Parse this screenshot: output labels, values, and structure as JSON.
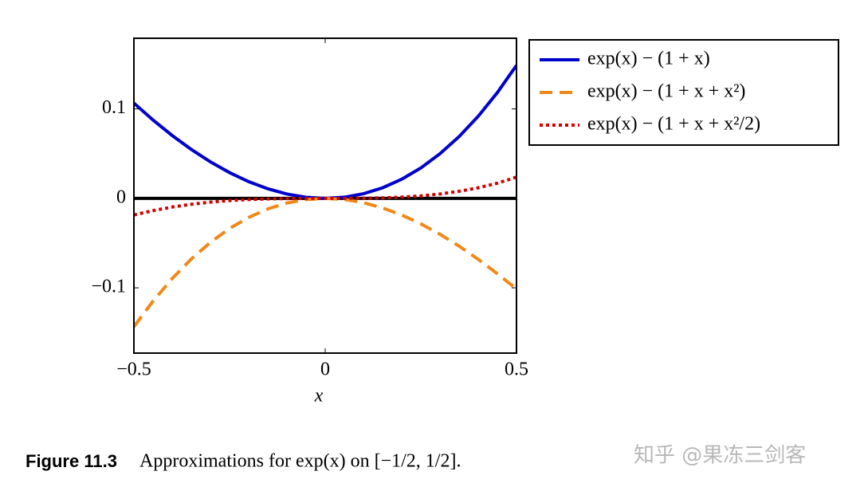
{
  "chart_data": {
    "type": "line",
    "x": [
      -0.5,
      -0.45,
      -0.4,
      -0.35,
      -0.3,
      -0.25,
      -0.2,
      -0.15,
      -0.1,
      -0.05,
      0,
      0.05,
      0.1,
      0.15,
      0.2,
      0.25,
      0.3,
      0.35,
      0.4,
      0.45,
      0.5
    ],
    "series": [
      {
        "name": "exp(x) − (1 + x)",
        "color": "#0000cc",
        "style": "solid",
        "values": [
          0.1065,
          0.0876,
          0.0703,
          0.0547,
          0.0408,
          0.0288,
          0.0187,
          0.0107,
          0.0048,
          0.0012,
          0,
          0.0013,
          0.0052,
          0.0118,
          0.0214,
          0.034,
          0.0499,
          0.0691,
          0.0918,
          0.1183,
          0.1487
        ]
      },
      {
        "name": "exp(x) − (1 + x + x²)",
        "color": "#f0891a",
        "style": "dashed",
        "values": [
          -0.1435,
          -0.1149,
          -0.0897,
          -0.0678,
          -0.0492,
          -0.0337,
          -0.0213,
          -0.0118,
          -0.0052,
          -0.0013,
          0,
          -0.0012,
          -0.0048,
          -0.0107,
          -0.0186,
          -0.0285,
          -0.0401,
          -0.0534,
          -0.0682,
          -0.0842,
          -0.1013
        ]
      },
      {
        "name": "exp(x) − (1 + x + x²/2)",
        "color": "#d40000",
        "style": "dotted",
        "values": [
          -0.0185,
          -0.0137,
          -0.0097,
          -0.0066,
          -0.0042,
          -0.0025,
          -0.0013,
          -0.0006,
          -0.0002,
          0,
          0,
          0,
          0.0002,
          0.0006,
          0.0014,
          0.0028,
          0.0049,
          0.0079,
          0.0118,
          0.017,
          0.0237
        ]
      }
    ],
    "xlim": [
      -0.5,
      0.5
    ],
    "xticks": [
      {
        "value": -0.5,
        "label": "−0.5"
      },
      0,
      0.5
    ],
    "ylim": [
      -0.173,
      0.179
    ],
    "yticks": [
      {
        "value": -0.1,
        "label": "−0.1"
      },
      0,
      0.1
    ],
    "x_label": "x",
    "legend": "outside-right",
    "caption_label": "Figure 11.3",
    "caption": "Approximations for exp(x) on [−1/2, 1/2].",
    "watermark": "知乎 @果冻三剑客"
  }
}
